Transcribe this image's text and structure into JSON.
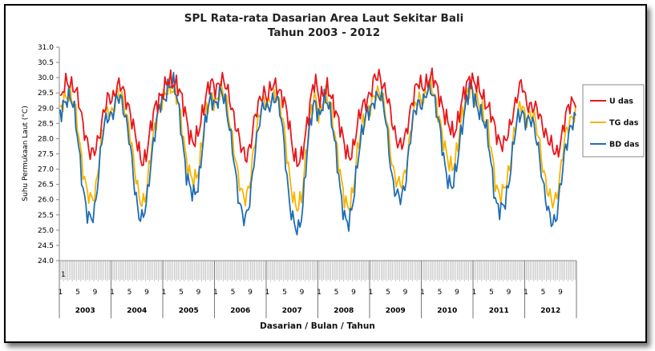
{
  "chart_data": {
    "type": "line",
    "title": "SPL Rata-rata Dasarian Area Laut Sekitar Bali",
    "subtitle": "Tahun 2003  - 2012",
    "xlabel": "Dasarian /  Bulan /  Tahun",
    "ylabel": "Suhu Permukaan Laut (°C)",
    "ylim": [
      24.0,
      31.0
    ],
    "y_ticks": [
      "24.0",
      "24.5",
      "25.0",
      "25.5",
      "26.0",
      "26.5",
      "27.0",
      "27.5",
      "28.0",
      "28.5",
      "29.0",
      "29.5",
      "30.0",
      "30.5",
      "31.0"
    ],
    "years": [
      "2003",
      "2004",
      "2005",
      "2006",
      "2007",
      "2008",
      "2009",
      "2010",
      "2011",
      "2012"
    ],
    "month_ticks": [
      "1",
      "5",
      "9"
    ],
    "first_dasarian_label": "1",
    "x_unit": "dasarian (10-day period), 36 per year, Jan 2003 - Dec 2012",
    "grid": false,
    "legend_position": "right",
    "series": [
      {
        "name": "U das",
        "color": "#e8161b",
        "monthly": [
          [
            29.2,
            29.8,
            29.9,
            29.7,
            29.3,
            28.6,
            28.0,
            27.4,
            27.6,
            28.2,
            28.9,
            29.3
          ],
          [
            29.3,
            29.8,
            29.7,
            29.3,
            29.0,
            28.3,
            27.6,
            27.2,
            27.6,
            28.4,
            29.1,
            29.4
          ],
          [
            29.6,
            29.9,
            29.9,
            29.8,
            29.3,
            28.8,
            28.1,
            27.8,
            28.2,
            29.0,
            29.6,
            29.8
          ],
          [
            29.6,
            30.0,
            29.8,
            29.4,
            28.9,
            28.2,
            27.6,
            27.4,
            27.8,
            28.6,
            29.2,
            29.6
          ],
          [
            29.3,
            29.7,
            29.8,
            29.5,
            29.1,
            28.5,
            27.6,
            27.1,
            27.4,
            28.4,
            29.3,
            29.9
          ],
          [
            29.3,
            29.6,
            29.6,
            29.2,
            28.9,
            28.3,
            27.6,
            27.4,
            27.8,
            28.5,
            29.1,
            29.3
          ],
          [
            29.5,
            30.0,
            30.1,
            29.7,
            29.2,
            28.5,
            28.0,
            27.7,
            28.0,
            28.9,
            29.5,
            29.8
          ],
          [
            29.7,
            29.9,
            30.0,
            29.8,
            29.4,
            28.8,
            28.4,
            28.2,
            28.5,
            29.1,
            29.7,
            30.1
          ],
          [
            29.8,
            29.6,
            29.4,
            29.1,
            28.7,
            28.2,
            27.9,
            27.8,
            28.2,
            28.9,
            29.5,
            29.8
          ],
          [
            29.2,
            29.1,
            29.0,
            28.8,
            28.4,
            28.0,
            27.7,
            27.5,
            27.9,
            28.6,
            29.1,
            29.3
          ]
        ]
      },
      {
        "name": "TG das",
        "color": "#f7b500",
        "monthly": [
          [
            28.9,
            29.4,
            29.5,
            29.2,
            28.3,
            27.2,
            26.3,
            25.9,
            26.2,
            27.5,
            28.5,
            28.9
          ],
          [
            28.9,
            29.4,
            29.4,
            29.0,
            28.3,
            27.1,
            26.2,
            25.9,
            26.3,
            27.6,
            28.6,
            29.1
          ],
          [
            29.3,
            29.7,
            29.7,
            29.3,
            28.5,
            27.5,
            26.8,
            26.5,
            27.0,
            28.2,
            29.0,
            29.4
          ],
          [
            29.2,
            29.6,
            29.4,
            28.8,
            27.9,
            26.8,
            26.2,
            26.1,
            26.6,
            27.8,
            28.8,
            29.3
          ],
          [
            29.0,
            29.4,
            29.5,
            29.0,
            28.1,
            26.9,
            26.0,
            25.6,
            26.2,
            27.7,
            28.8,
            29.4
          ],
          [
            28.8,
            29.3,
            29.3,
            28.8,
            27.8,
            26.6,
            25.9,
            25.8,
            26.4,
            27.7,
            28.6,
            28.9
          ],
          [
            29.0,
            29.5,
            29.6,
            29.1,
            28.2,
            27.1,
            26.6,
            26.4,
            26.9,
            28.1,
            28.9,
            29.3
          ],
          [
            29.3,
            29.6,
            29.7,
            29.3,
            28.6,
            27.7,
            27.2,
            27.1,
            27.6,
            28.6,
            29.4,
            29.8
          ],
          [
            29.3,
            29.2,
            28.9,
            28.4,
            27.5,
            26.5,
            26.1,
            26.3,
            26.9,
            28.0,
            28.8,
            29.1
          ],
          [
            28.7,
            28.8,
            28.6,
            28.0,
            27.0,
            26.2,
            25.9,
            26.1,
            26.9,
            28.0,
            28.6,
            28.8
          ]
        ]
      },
      {
        "name": "BD das",
        "color": "#1f6db5",
        "monthly": [
          [
            28.8,
            29.3,
            29.4,
            29.0,
            28.0,
            26.6,
            25.5,
            25.3,
            25.8,
            27.2,
            28.4,
            28.8
          ],
          [
            28.8,
            29.3,
            29.3,
            28.8,
            27.9,
            26.5,
            25.6,
            25.4,
            25.9,
            27.3,
            28.5,
            29.1
          ],
          [
            29.2,
            29.8,
            29.9,
            29.3,
            28.3,
            27.0,
            26.3,
            26.1,
            26.6,
            27.9,
            28.9,
            29.4
          ],
          [
            29.1,
            29.5,
            29.3,
            28.6,
            27.5,
            26.2,
            25.6,
            25.4,
            26.0,
            27.5,
            28.6,
            29.1
          ],
          [
            28.9,
            29.3,
            29.4,
            28.8,
            27.6,
            26.0,
            25.2,
            24.9,
            25.6,
            27.3,
            28.6,
            29.3
          ],
          [
            28.7,
            29.2,
            29.2,
            28.6,
            27.4,
            26.0,
            25.4,
            25.3,
            26.0,
            27.4,
            28.4,
            28.8
          ],
          [
            28.9,
            29.4,
            29.5,
            29.0,
            27.9,
            26.6,
            26.1,
            26.0,
            26.6,
            27.9,
            28.8,
            29.2
          ],
          [
            29.2,
            29.5,
            29.6,
            29.2,
            28.3,
            27.1,
            26.6,
            26.5,
            27.1,
            28.3,
            29.2,
            29.8
          ],
          [
            29.2,
            29.0,
            28.7,
            28.1,
            27.0,
            25.9,
            25.6,
            25.8,
            26.6,
            27.8,
            28.6,
            28.9
          ],
          [
            28.6,
            28.6,
            28.3,
            27.6,
            26.4,
            25.6,
            25.3,
            25.4,
            26.4,
            27.6,
            28.3,
            28.6
          ]
        ]
      }
    ]
  }
}
